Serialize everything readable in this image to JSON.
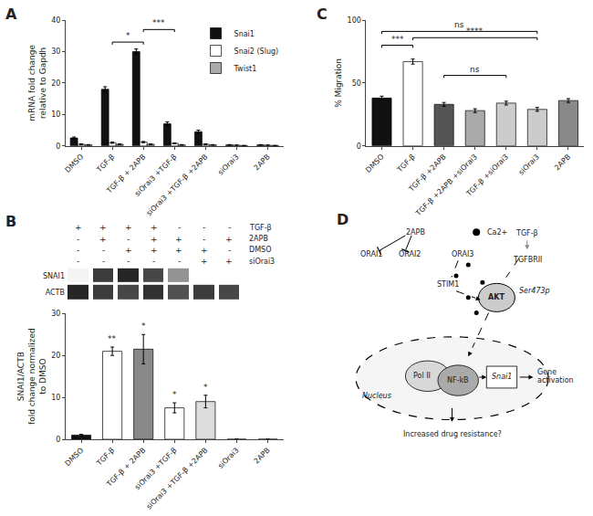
{
  "chart_data": [
    {
      "type": "bar",
      "title": "A",
      "categories": [
        "DMSO",
        "TGF-β",
        "TGF-β + 2APB",
        "siOrai3 +TGF-β",
        "siOrai3 +TGF-β +2APB",
        "siOrai3",
        "2APB"
      ],
      "series": [
        {
          "name": "Snai1",
          "color": "#111111",
          "values": [
            2.5,
            18.0,
            30.0,
            7.0,
            4.5,
            0.3,
            0.3
          ],
          "errors": [
            0.3,
            0.8,
            0.8,
            0.6,
            0.5,
            0.1,
            0.1
          ]
        },
        {
          "name": "Snai2 (Slug)",
          "color": "#ffffff",
          "values": [
            0.5,
            1.0,
            1.2,
            0.8,
            0.5,
            0.2,
            0.2
          ],
          "errors": [
            0.1,
            0.2,
            0.2,
            0.1,
            0.1,
            0.05,
            0.05
          ]
        },
        {
          "name": "Twist1",
          "color": "#aaaaaa",
          "values": [
            0.3,
            0.5,
            0.5,
            0.3,
            0.3,
            0.1,
            0.1
          ],
          "errors": [
            0.1,
            0.1,
            0.1,
            0.1,
            0.1,
            0.05,
            0.05
          ]
        }
      ],
      "ylabel": "mRNA fold change\nrelative to Gapdh",
      "ylim": [
        0,
        40
      ],
      "yticks": [
        0,
        10,
        20,
        30,
        40
      ],
      "brackets": [
        {
          "from": "TGF-β",
          "to": "TGF-β + 2APB",
          "y": 33,
          "text": "*"
        },
        {
          "from": "TGF-β + 2APB",
          "to": "siOrai3 +TGF-β",
          "y": 37,
          "text": "***"
        }
      ],
      "legend": "upper right",
      "grid": false
    },
    {
      "type": "bar",
      "title": "B",
      "lanes": [
        {
          "label": "TGF-β",
          "values": [
            "+",
            "+",
            "+",
            "+",
            "-",
            "-",
            "-"
          ]
        },
        {
          "label": "2APB",
          "values": [
            "-",
            "+",
            "-",
            "+",
            "+",
            "-",
            "+"
          ]
        },
        {
          "label": "DMSO",
          "values": [
            "-",
            "-",
            "+",
            "+",
            "+",
            "+",
            "-"
          ]
        },
        {
          "label": "siOrai3",
          "values": [
            "-",
            "-",
            "-",
            "-",
            "-",
            "+",
            "+"
          ]
        }
      ],
      "blot": [
        {
          "label": "SNAI1",
          "values": [
            0.05,
            0.9,
            1.0,
            0.85,
            0.5,
            0.0,
            0.0
          ]
        },
        {
          "label": "ACTB",
          "values": [
            1.0,
            0.9,
            0.85,
            0.95,
            0.8,
            0.9,
            0.85
          ]
        }
      ],
      "categories": [
        "DMSO",
        "TGF-β",
        "TGF-β + 2APB",
        "siOrai3 +TGF-β",
        "siOrai3 +TGF-β +2APB",
        "siOrai3",
        "2APB"
      ],
      "values": [
        1.0,
        21.0,
        21.5,
        7.5,
        9.0,
        0.0,
        0.0
      ],
      "errors": [
        0.2,
        1.0,
        3.5,
        1.2,
        1.5,
        0.0,
        0.0
      ],
      "colors": [
        "#111111",
        "#ffffff",
        "#888888",
        "#ffffff",
        "#dddddd",
        "#ffffff",
        "#ffffff"
      ],
      "ylabel": "SNAI1/ACTB\nfold change normalized\nto DMSO",
      "ylim": [
        0,
        30
      ],
      "yticks": [
        0,
        10,
        20,
        30
      ],
      "annotations": [
        {
          "category": "TGF-β",
          "text": "**"
        },
        {
          "category": "TGF-β + 2APB",
          "text": "*"
        },
        {
          "category": "siOrai3 +TGF-β",
          "text": "*"
        },
        {
          "category": "siOrai3 +TGF-β +2APB",
          "text": "*"
        }
      ],
      "grid": false
    },
    {
      "type": "bar",
      "title": "C",
      "categories": [
        "DMSO",
        "TGF-β",
        "TGF-β +2APB",
        "TGF-β +2APB +siOrai3",
        "TGF-β +siOrai3",
        "siOrai3",
        "2APB"
      ],
      "values": [
        38.0,
        67.0,
        33.0,
        28.0,
        34.0,
        29.0,
        36.0
      ],
      "errors": [
        1.5,
        2.0,
        1.5,
        1.5,
        1.5,
        1.5,
        1.5
      ],
      "colors": [
        "#111111",
        "#ffffff",
        "#555555",
        "#aaaaaa",
        "#cccccc",
        "#cccccc",
        "#888888"
      ],
      "ylabel": "% Migration",
      "ylim": [
        0,
        100
      ],
      "yticks": [
        0,
        50,
        100
      ],
      "brackets": [
        {
          "from": "DMSO",
          "to": "siOrai3",
          "y": 91,
          "text": "ns"
        },
        {
          "from": "DMSO",
          "to": "TGF-β",
          "y": 80,
          "text": "***"
        },
        {
          "from": "TGF-β",
          "to": "siOrai3",
          "y": 86,
          "text": "****"
        },
        {
          "from": "TGF-β +2APB",
          "to": "TGF-β +siOrai3",
          "y": 56,
          "text": "ns"
        }
      ],
      "grid": false
    },
    {
      "type": "diagram",
      "title": "D",
      "labels": [
        "TGF-β",
        "TGFBRII",
        "Ca2+",
        "2APB",
        "ORAI1",
        "ORAI2",
        "ORAI3",
        "STIM1",
        "AKT",
        "Ser473p",
        "Nucleus",
        "Pol II",
        "NF-kB",
        "Snai1",
        "Gene",
        "activation",
        "Increased drug resistance?"
      ]
    }
  ]
}
